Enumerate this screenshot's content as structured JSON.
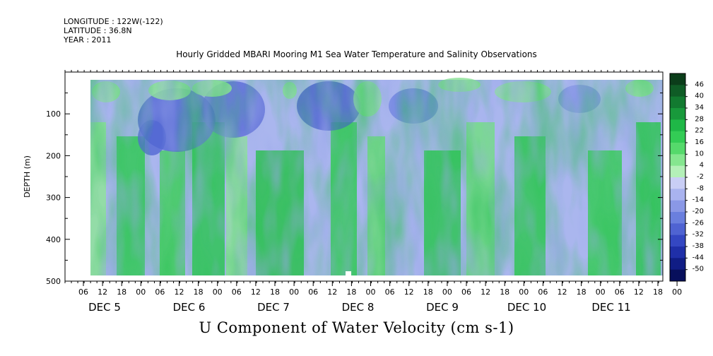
{
  "header": {
    "longitude": "LONGITUDE : 122W(-122)",
    "latitude": "LATITUDE : 36.8N",
    "year": "YEAR : 2011"
  },
  "chart_data": {
    "type": "heatmap",
    "title": "Hourly Gridded MBARI Mooring M1 Sea Water Temperature and Salinity Observations",
    "xlabel": "U Component of Water Velocity (cm s-1)",
    "ylabel": "DEPTH (m)",
    "ylim": [
      500,
      0
    ],
    "y_ticks": [
      100,
      200,
      300,
      400,
      500
    ],
    "x_hour_ticks": [
      "06",
      "12",
      "18",
      "00",
      "06",
      "12",
      "18",
      "00",
      "06",
      "12",
      "18",
      "00",
      "06",
      "12",
      "18",
      "00",
      "06",
      "12",
      "18",
      "00",
      "06",
      "12",
      "18",
      "00",
      "06",
      "12",
      "18",
      "00",
      "06",
      "12",
      "18",
      "00"
    ],
    "x_day_labels": [
      "DEC  5",
      "DEC  6",
      "DEC  7",
      "DEC  8",
      "DEC  9",
      "DEC 10",
      "DEC 11"
    ],
    "colorbar": {
      "levels": [
        46,
        40,
        34,
        28,
        22,
        16,
        10,
        4,
        -2,
        -8,
        -14,
        -20,
        -26,
        -32,
        -38,
        -44,
        -50
      ],
      "labels": [
        "46",
        "40",
        "34",
        "28",
        "22",
        "16",
        "10",
        "4",
        "-2",
        "-8",
        "-14",
        "-20",
        "-26",
        "-32",
        "-38",
        "-44",
        "-50"
      ],
      "colors": [
        "#0b3d1a",
        "#0f5c26",
        "#127a30",
        "#18993b",
        "#1fb847",
        "#33cc55",
        "#55d96b",
        "#85e68f",
        "#b4f0b8",
        "#c9cef5",
        "#a9b3ef",
        "#8a98e6",
        "#6a7fde",
        "#4f63d2",
        "#3447c2",
        "#1f2fa8",
        "#101d85",
        "#070f5c"
      ]
    }
  }
}
